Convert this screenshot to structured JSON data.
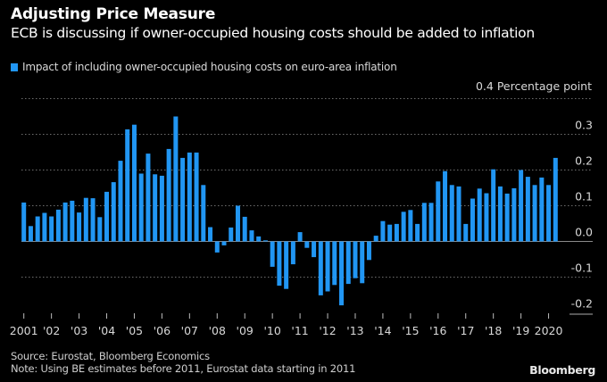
{
  "header": {
    "title": "Adjusting Price Measure",
    "subtitle": "ECB is discussing if owner-occupied housing costs should be added to inflation"
  },
  "footer": {
    "source": "Source: Eurostat, Bloomberg Economics",
    "note": "Note: Using BE estimates before 2011, Eurostat data starting in 2011",
    "logo": "Bloomberg"
  },
  "colors": {
    "background": "#000000",
    "bar": "#2196f3",
    "grid": "#6e6e6e",
    "zero_line": "#8a8a8a",
    "text": "#d8d8d8"
  },
  "chart_data": {
    "type": "bar",
    "title": "Adjusting Price Measure",
    "subtitle": "ECB is discussing if owner-occupied housing costs should be added to inflation",
    "legend": [
      "Impact of including owner-occupied housing costs on euro-area inflation"
    ],
    "legend_position": "top-left",
    "unit_label": "Percentage point",
    "xlabel": "",
    "ylabel": "Percentage point",
    "ylim": [
      -0.2,
      0.4
    ],
    "yticks": [
      0.4,
      0.3,
      0.2,
      0.1,
      0.0,
      -0.1,
      -0.2
    ],
    "ytick_labels": [
      "0.4 Percentage point",
      "0.3",
      "0.2",
      "0.1",
      "0.0",
      "-0.1",
      "-0.2"
    ],
    "grid": true,
    "frequency": "quarterly",
    "start": "2001 Q1",
    "end": "2020 Q2",
    "xtick_labels": [
      "2001",
      "'02",
      "'03",
      "'04",
      "'05",
      "'06",
      "'07",
      "'08",
      "'09",
      "'10",
      "'11",
      "'12",
      "'13",
      "'14",
      "'15",
      "'16",
      "'17",
      "'18",
      "'19",
      "2020"
    ],
    "series": [
      {
        "name": "Impact of including owner-occupied housing costs on euro-area inflation",
        "values": [
          0.109,
          0.043,
          0.07,
          0.08,
          0.07,
          0.089,
          0.109,
          0.114,
          0.081,
          0.122,
          0.121,
          0.068,
          0.139,
          0.166,
          0.226,
          0.314,
          0.327,
          0.19,
          0.246,
          0.188,
          0.184,
          0.259,
          0.35,
          0.234,
          0.249,
          0.249,
          0.158,
          0.04,
          -0.031,
          -0.011,
          0.039,
          0.1,
          0.069,
          0.031,
          0.014,
          0.003,
          -0.071,
          -0.124,
          -0.133,
          -0.064,
          0.026,
          -0.018,
          -0.044,
          -0.151,
          -0.14,
          -0.122,
          -0.179,
          -0.119,
          -0.103,
          -0.117,
          -0.052,
          0.016,
          0.057,
          0.047,
          0.049,
          0.083,
          0.088,
          0.049,
          0.108,
          0.108,
          0.168,
          0.197,
          0.158,
          0.154,
          0.049,
          0.12,
          0.148,
          0.135,
          0.202,
          0.154,
          0.134,
          0.149,
          0.2,
          0.181,
          0.158,
          0.179,
          0.158,
          0.234
        ]
      }
    ]
  }
}
